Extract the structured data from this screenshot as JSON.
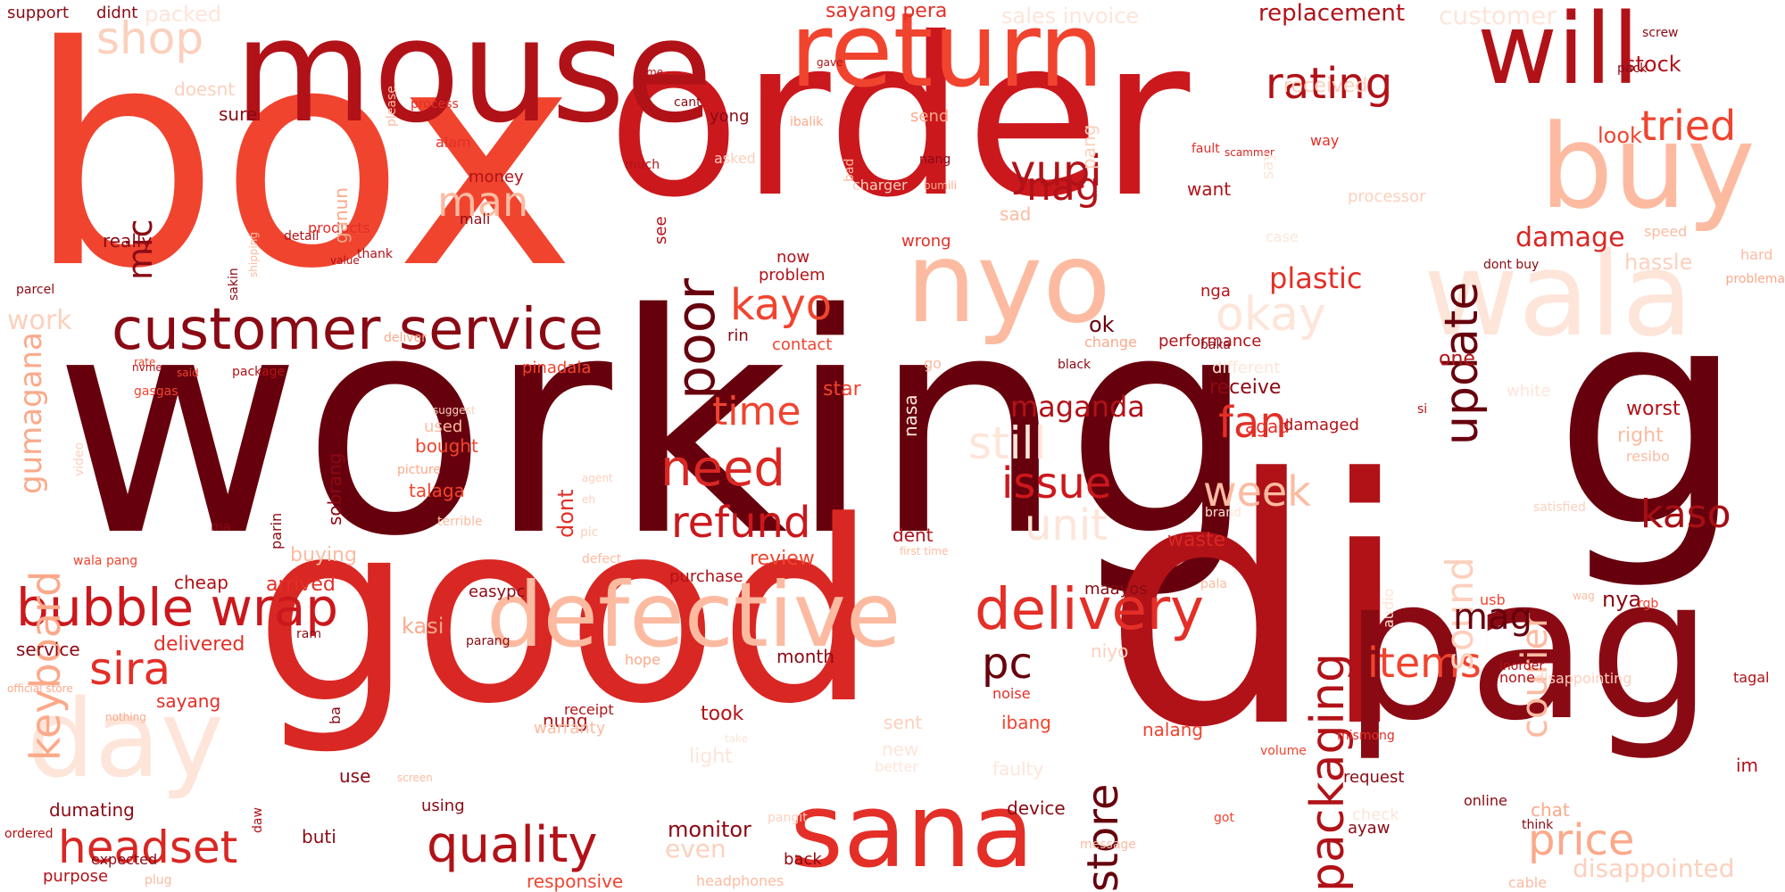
{
  "words": [
    {
      "text": "working",
      "color": "#67000d"
    },
    {
      "text": "box",
      "color": "#f0442f"
    },
    {
      "text": "order",
      "color": "#cb181d"
    },
    {
      "text": "good",
      "color": "#d92723"
    },
    {
      "text": "di",
      "color": "#b11218"
    },
    {
      "text": "g",
      "color": "#67000d"
    },
    {
      "text": "pag",
      "color": "#8a0a14"
    },
    {
      "text": "mouse",
      "color": "#b11218"
    },
    {
      "text": "will",
      "color": "#b11218"
    },
    {
      "text": "return",
      "color": "#f0442f"
    },
    {
      "text": "buy",
      "color": "#fcbba1"
    },
    {
      "text": "wala",
      "color": "#fee5d9"
    },
    {
      "text": "nyo",
      "color": "#fcbba1"
    },
    {
      "text": "defective",
      "color": "#fcbba1"
    },
    {
      "text": "sana",
      "color": "#e32f27"
    },
    {
      "text": "day",
      "color": "#fee5d9"
    },
    {
      "text": "customer service",
      "color": "#8a0a14"
    },
    {
      "text": "bubble wrap",
      "color": "#cb181d"
    },
    {
      "text": "delivery",
      "color": "#e32f27"
    },
    {
      "text": "headset",
      "color": "#d92723"
    },
    {
      "text": "quality",
      "color": "#b11218"
    },
    {
      "text": "need",
      "color": "#d92723"
    },
    {
      "text": "refund",
      "color": "#cb181d"
    },
    {
      "text": "rating",
      "color": "#b11218"
    },
    {
      "text": "shop",
      "color": "#fcd0bd"
    },
    {
      "text": "poor",
      "color": "#67000d"
    },
    {
      "text": "update",
      "color": "#67000d"
    },
    {
      "text": "packaging",
      "color": "#b11218"
    },
    {
      "text": "store",
      "color": "#67000d"
    },
    {
      "text": "price",
      "color": "#fca98a"
    },
    {
      "text": "items",
      "color": "#f0442f"
    },
    {
      "text": "sira",
      "color": "#e32f27"
    },
    {
      "text": "kayo",
      "color": "#f0442f"
    },
    {
      "text": "okay",
      "color": "#fee5d9"
    },
    {
      "text": "yupi",
      "color": "#b11218"
    },
    {
      "text": "nag",
      "color": "#b11218"
    },
    {
      "text": "tried",
      "color": "#f0442f"
    },
    {
      "text": "still",
      "color": "#fee5d9"
    },
    {
      "text": "time",
      "color": "#f0442f"
    },
    {
      "text": "issue",
      "color": "#cb181d"
    },
    {
      "text": "fan",
      "color": "#e32f27"
    },
    {
      "text": "week",
      "color": "#fcbba1"
    },
    {
      "text": "unit",
      "color": "#fee5d9"
    },
    {
      "text": "kaso",
      "color": "#a50f15"
    },
    {
      "text": "keyboard",
      "color": "#fca98a"
    },
    {
      "text": "mic",
      "color": "#8a0a14"
    },
    {
      "text": "gumagana",
      "color": "#fca98a"
    },
    {
      "text": "sound",
      "color": "#fcd0bd"
    },
    {
      "text": "courier",
      "color": "#fcbba1"
    },
    {
      "text": "man",
      "color": "#fcbba1"
    },
    {
      "text": "plastic",
      "color": "#e32f27"
    },
    {
      "text": "damage",
      "color": "#d92723"
    },
    {
      "text": "pc",
      "color": "#67000d"
    },
    {
      "text": "mag",
      "color": "#67000d"
    },
    {
      "text": "maganda",
      "color": "#b11218"
    },
    {
      "text": "replacement",
      "color": "#b11218"
    },
    {
      "text": "customer",
      "color": "#fee5d9"
    },
    {
      "text": "stock",
      "color": "#b11218"
    },
    {
      "text": "hassle",
      "color": "#fcd0bd"
    },
    {
      "text": "look",
      "color": "#f0442f"
    },
    {
      "text": "sayang pera",
      "color": "#e32f27"
    },
    {
      "text": "sales invoice",
      "color": "#fee5d9"
    },
    {
      "text": "packed",
      "color": "#fee5d9"
    },
    {
      "text": "support",
      "color": "#8a0a14"
    },
    {
      "text": "didnt",
      "color": "#8a0a14"
    },
    {
      "text": "received",
      "color": "#fcd0bd"
    },
    {
      "text": "work",
      "color": "#fcd0bd"
    },
    {
      "text": "really",
      "color": "#8a0a14"
    },
    {
      "text": "sure",
      "color": "#8a0a14"
    },
    {
      "text": "money",
      "color": "#b11218"
    },
    {
      "text": "mali",
      "color": "#8a0a14"
    },
    {
      "text": "alam",
      "color": "#e32f27"
    },
    {
      "text": "yong",
      "color": "#8a0a14"
    },
    {
      "text": "send",
      "color": "#fca98a"
    },
    {
      "text": "want",
      "color": "#b11218"
    },
    {
      "text": "processor",
      "color": "#fcd0bd"
    },
    {
      "text": "wrong",
      "color": "#e32f27"
    },
    {
      "text": "problem",
      "color": "#b11218"
    },
    {
      "text": "rin",
      "color": "#8a0a14"
    },
    {
      "text": "contact",
      "color": "#f0442f"
    },
    {
      "text": "ok",
      "color": "#67000d"
    },
    {
      "text": "change",
      "color": "#fca98a"
    },
    {
      "text": "performance",
      "color": "#b11218"
    },
    {
      "text": "nga",
      "color": "#b11218"
    },
    {
      "text": "one",
      "color": "#b11218"
    },
    {
      "text": "white",
      "color": "#fee5d9"
    },
    {
      "text": "different",
      "color": "#fee5d9"
    },
    {
      "text": "receive",
      "color": "#8a0a14"
    },
    {
      "text": "agad",
      "color": "#e32f27"
    },
    {
      "text": "damaged",
      "color": "#b11218"
    },
    {
      "text": "si",
      "color": "#b11218"
    },
    {
      "text": "worst",
      "color": "#b11218"
    },
    {
      "text": "right",
      "color": "#fcbba1"
    },
    {
      "text": "pinadala",
      "color": "#f0442f"
    },
    {
      "text": "star",
      "color": "#f0442f"
    },
    {
      "text": "bought",
      "color": "#f0442f"
    },
    {
      "text": "talaga",
      "color": "#f0442f"
    },
    {
      "text": "dent",
      "color": "#b11218"
    },
    {
      "text": "waste",
      "color": "#d92723"
    },
    {
      "text": "review",
      "color": "#f0442f"
    },
    {
      "text": "buying",
      "color": "#fcbba1"
    },
    {
      "text": "cheap",
      "color": "#b11218"
    },
    {
      "text": "arrived",
      "color": "#e32f27"
    },
    {
      "text": "easypc",
      "color": "#8a0a14"
    },
    {
      "text": "maayos",
      "color": "#8a0a14"
    },
    {
      "text": "purchase",
      "color": "#b11218"
    },
    {
      "text": "kasi",
      "color": "#fca98a"
    },
    {
      "text": "service",
      "color": "#8a0a14"
    },
    {
      "text": "delivered",
      "color": "#e32f27"
    },
    {
      "text": "sayang",
      "color": "#e32f27"
    },
    {
      "text": "nung",
      "color": "#b11218"
    },
    {
      "text": "took",
      "color": "#b11218"
    },
    {
      "text": "month",
      "color": "#8a0a14"
    },
    {
      "text": "niyo",
      "color": "#fcd0bd"
    },
    {
      "text": "ibang",
      "color": "#f0442f"
    },
    {
      "text": "nalang",
      "color": "#f0442f"
    },
    {
      "text": "light",
      "color": "#fee5d9"
    },
    {
      "text": "even",
      "color": "#fcd0bd"
    },
    {
      "text": "use",
      "color": "#8a0a14"
    },
    {
      "text": "dumating",
      "color": "#8a0a14"
    },
    {
      "text": "buti",
      "color": "#8a0a14"
    },
    {
      "text": "using",
      "color": "#8a0a14"
    },
    {
      "text": "monitor",
      "color": "#8a0a14"
    },
    {
      "text": "device",
      "color": "#8a0a14"
    },
    {
      "text": "faulty",
      "color": "#fee5d9"
    },
    {
      "text": "request",
      "color": "#8a0a14"
    },
    {
      "text": "ayaw",
      "color": "#8a0a14"
    },
    {
      "text": "chat",
      "color": "#fca98a"
    },
    {
      "text": "online",
      "color": "#8a0a14"
    },
    {
      "text": "disappointed",
      "color": "#fcd0bd"
    },
    {
      "text": "purpose",
      "color": "#b11218"
    },
    {
      "text": "ordered",
      "color": "#b11218"
    },
    {
      "text": "back",
      "color": "#8a0a14"
    },
    {
      "text": "nya",
      "color": "#8a0a14"
    },
    {
      "text": "usb",
      "color": "#f0442f"
    },
    {
      "text": "rgb",
      "color": "#f0442f"
    },
    {
      "text": "none",
      "color": "#b11218"
    },
    {
      "text": "tagal",
      "color": "#b11218"
    },
    {
      "text": "disappointing",
      "color": "#fcd0bd"
    },
    {
      "text": "im",
      "color": "#b11218"
    },
    {
      "text": "inorder",
      "color": "#b11218"
    },
    {
      "text": "dont",
      "color": "#e32f27"
    },
    {
      "text": "sobrang",
      "color": "#8a0a14"
    },
    {
      "text": "parin",
      "color": "#8a0a14"
    },
    {
      "text": "please",
      "color": "#fcbba1"
    },
    {
      "text": "doesnt",
      "color": "#fcd0bd"
    },
    {
      "text": "process",
      "color": "#e32f27"
    },
    {
      "text": "came",
      "color": "#b11218"
    },
    {
      "text": "gave",
      "color": "#b11218"
    },
    {
      "text": "cant",
      "color": "#8a0a14"
    },
    {
      "text": "ibalik",
      "color": "#fca98a"
    },
    {
      "text": "nang",
      "color": "#8a0a14"
    },
    {
      "text": "asked",
      "color": "#fcd0bd"
    },
    {
      "text": "charger",
      "color": "#fcd0bd"
    },
    {
      "text": "bumili",
      "color": "#fca98a"
    },
    {
      "text": "fault",
      "color": "#e32f27"
    },
    {
      "text": "scammer",
      "color": "#d92723"
    },
    {
      "text": "way",
      "color": "#e32f27"
    },
    {
      "text": "pack",
      "color": "#8a0a14"
    },
    {
      "text": "screw",
      "color": "#8a0a14"
    },
    {
      "text": "case",
      "color": "#fee5d9"
    },
    {
      "text": "speed",
      "color": "#fcbba1"
    },
    {
      "text": "hard",
      "color": "#fcbba1"
    },
    {
      "text": "dont buy",
      "color": "#8a0a14"
    },
    {
      "text": "problema",
      "color": "#fca98a"
    },
    {
      "text": "baka",
      "color": "#8a0a14"
    },
    {
      "text": "black",
      "color": "#8a0a14"
    },
    {
      "text": "products",
      "color": "#e32f27"
    },
    {
      "text": "thank",
      "color": "#b11218"
    },
    {
      "text": "sakin",
      "color": "#8a0a14"
    },
    {
      "text": "detail",
      "color": "#b11218"
    },
    {
      "text": "shipping",
      "color": "#fcbba1"
    },
    {
      "text": "parcel",
      "color": "#8a0a14"
    },
    {
      "text": "rate",
      "color": "#f0442f"
    },
    {
      "text": "said",
      "color": "#f0442f"
    },
    {
      "text": "gasgas",
      "color": "#f0442f"
    },
    {
      "text": "package",
      "color": "#b11218"
    },
    {
      "text": "deliver",
      "color": "#fca98a"
    },
    {
      "text": "nvme",
      "color": "#b11218"
    },
    {
      "text": "video",
      "color": "#fcd0bd"
    },
    {
      "text": "used",
      "color": "#fcbba1"
    },
    {
      "text": "picture",
      "color": "#fca98a"
    },
    {
      "text": "suggest",
      "color": "#fcd0bd"
    },
    {
      "text": "agent",
      "color": "#fcd0bd"
    },
    {
      "text": "ma",
      "color": "#8a0a14"
    },
    {
      "text": "eh",
      "color": "#fcd0bd"
    },
    {
      "text": "terrible",
      "color": "#fcbba1"
    },
    {
      "text": "pic",
      "color": "#fcd0bd"
    },
    {
      "text": "defect",
      "color": "#fcbba1"
    },
    {
      "text": "first time",
      "color": "#fcbba1"
    },
    {
      "text": "brand",
      "color": "#fee5d9"
    },
    {
      "text": "satisfied",
      "color": "#fcd0bd"
    },
    {
      "text": "pala",
      "color": "#fcbba1"
    },
    {
      "text": "audio",
      "color": "#fee5d9"
    },
    {
      "text": "wala pang",
      "color": "#f0442f"
    },
    {
      "text": "ram",
      "color": "#8a0a14"
    },
    {
      "text": "parang",
      "color": "#8a0a14"
    },
    {
      "text": "hope",
      "color": "#fca98a"
    },
    {
      "text": "receipt",
      "color": "#b11218"
    },
    {
      "text": "warranty",
      "color": "#fcbba1"
    },
    {
      "text": "take",
      "color": "#fee5d9"
    },
    {
      "text": "sent",
      "color": "#fcd0bd"
    },
    {
      "text": "new",
      "color": "#fee5d9"
    },
    {
      "text": "noise",
      "color": "#e32f27"
    },
    {
      "text": "volume",
      "color": "#f0442f"
    },
    {
      "text": "mismong",
      "color": "#e32f27"
    },
    {
      "text": "message",
      "color": "#fcbba1"
    },
    {
      "text": "got",
      "color": "#f0442f"
    },
    {
      "text": "check",
      "color": "#fee5d9"
    },
    {
      "text": "think",
      "color": "#8a0a14"
    },
    {
      "text": "cable",
      "color": "#fcbba1"
    },
    {
      "text": "responsive",
      "color": "#f0442f"
    },
    {
      "text": "headphones",
      "color": "#fcbba1"
    },
    {
      "text": "plug",
      "color": "#fcbba1"
    },
    {
      "text": "expected",
      "color": "#8a0a14"
    },
    {
      "text": "nothing",
      "color": "#fca98a"
    },
    {
      "text": "official store",
      "color": "#fca98a"
    },
    {
      "text": "daw",
      "color": "#b11218"
    },
    {
      "text": "ba",
      "color": "#8a0a14"
    },
    {
      "text": "better",
      "color": "#fee5d9"
    },
    {
      "text": "screen",
      "color": "#fcbba1"
    },
    {
      "text": "pangit",
      "color": "#fcd0bd"
    },
    {
      "text": "ganun",
      "color": "#fca98a"
    },
    {
      "text": "value",
      "color": "#b11218"
    },
    {
      "text": "bad",
      "color": "#fcbba1"
    },
    {
      "text": "see",
      "color": "#b11218"
    },
    {
      "text": "much",
      "color": "#b11218"
    },
    {
      "text": "now",
      "color": "#b11218"
    },
    {
      "text": "sad",
      "color": "#fcbba1"
    },
    {
      "text": "say",
      "color": "#fee5d9"
    },
    {
      "text": "nasa",
      "color": "#fee5d9"
    },
    {
      "text": "go",
      "color": "#fcbba1"
    },
    {
      "text": "resibo",
      "color": "#fcbba1"
    },
    {
      "text": "wag",
      "color": "#fcbba1"
    },
    {
      "text": "pang",
      "color": "#fcd0bd"
    }
  ]
}
